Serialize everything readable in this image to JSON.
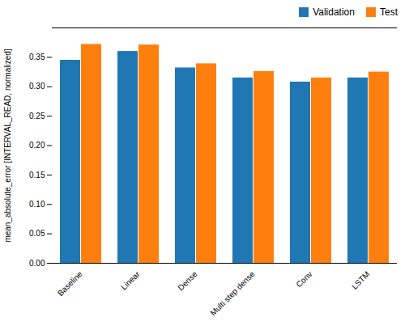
{
  "chart_data": {
    "type": "bar",
    "categories": [
      "Baseline",
      "Linear",
      "Dense",
      "Multi step dense",
      "Conv",
      "LSTM"
    ],
    "series": [
      {
        "name": "Validation",
        "color": "#1f77b4",
        "values": [
          0.345,
          0.36,
          0.332,
          0.315,
          0.308,
          0.315
        ]
      },
      {
        "name": "Test",
        "color": "#ff7f0e",
        "values": [
          0.372,
          0.371,
          0.339,
          0.326,
          0.315,
          0.325
        ]
      }
    ],
    "ylabel": "mean_absolute_error [INTERVAL_READ, normalized]",
    "ylim": [
      0.0,
      0.4
    ],
    "yticks": [
      {
        "value": 0.0,
        "label": "0.00"
      },
      0.05,
      {
        "value": 0.1,
        "label": "0.10"
      },
      0.15,
      {
        "value": 0.2,
        "label": "0.20"
      },
      0.25,
      {
        "value": 0.3,
        "label": "0.30"
      },
      0.35
    ],
    "legend": "upper right",
    "grid": false
  }
}
